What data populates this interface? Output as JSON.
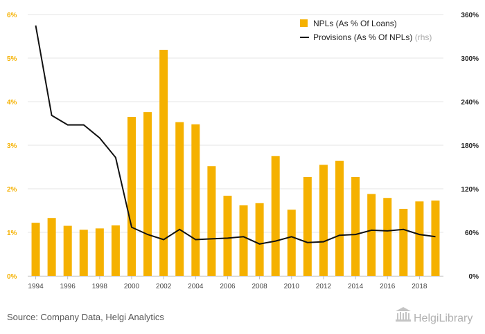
{
  "chart_data": {
    "type": "bar",
    "x": [
      1994,
      1995,
      1996,
      1997,
      1998,
      1999,
      2000,
      2001,
      2002,
      2003,
      2004,
      2005,
      2006,
      2007,
      2008,
      2009,
      2010,
      2011,
      2012,
      2013,
      2014,
      2015,
      2016,
      2017,
      2018,
      2019
    ],
    "x_tick_labels": [
      "1994",
      "1996",
      "1998",
      "2000",
      "2002",
      "2004",
      "2006",
      "2008",
      "2010",
      "2012",
      "2014",
      "2016",
      "2018"
    ],
    "series": [
      {
        "name": "NPLs (As % Of Loans)",
        "type": "bar",
        "axis": "left",
        "color": "#f5b100",
        "values": [
          1.22,
          1.33,
          1.15,
          1.06,
          1.09,
          1.16,
          3.65,
          3.76,
          5.19,
          3.53,
          3.48,
          2.52,
          1.84,
          1.62,
          1.67,
          2.75,
          1.52,
          2.27,
          2.55,
          2.64,
          2.27,
          1.88,
          1.79,
          1.54,
          1.71,
          1.73
        ]
      },
      {
        "name": "Provisions (As % Of NPLs)",
        "name_note": "(rhs)",
        "type": "line",
        "axis": "right",
        "color": "#111111",
        "values": [
          345,
          221,
          208,
          208,
          190,
          163,
          67,
          57,
          50,
          64,
          50,
          51,
          52,
          54,
          44,
          48,
          54,
          46,
          47,
          56,
          57,
          63,
          62,
          64,
          57,
          54
        ]
      }
    ],
    "y_left": {
      "min": 0,
      "max": 6,
      "ticks": [
        "0%",
        "1%",
        "2%",
        "3%",
        "4%",
        "5%",
        "6%"
      ],
      "color": "#f5b100"
    },
    "y_right": {
      "min": 0,
      "max": 360,
      "ticks": [
        "0%",
        "60%",
        "120%",
        "180%",
        "240%",
        "300%",
        "360%"
      ]
    },
    "grid": true,
    "legend_position": "top-right"
  },
  "footer": {
    "source": "Source: Company Data, Helgi Analytics",
    "brand": "HelgiLibrary"
  }
}
